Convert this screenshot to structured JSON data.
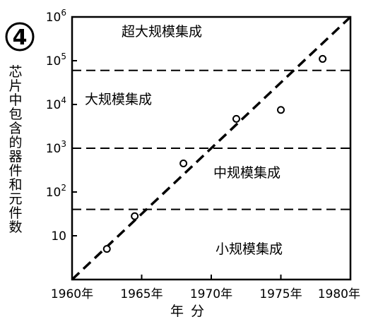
{
  "chart_data": {
    "type": "scatter",
    "badge": "4",
    "ylabel": "芯片中包含的器件和元件数",
    "xlabel": "年分",
    "x_ticks": [
      {
        "value": 1960,
        "label": "1960年"
      },
      {
        "value": 1965,
        "label": "1965年"
      },
      {
        "value": 1970,
        "label": "1970年"
      },
      {
        "value": 1975,
        "label": "1975年"
      },
      {
        "value": 1980,
        "label": "1980年"
      }
    ],
    "y_ticks": [
      {
        "exp": 1,
        "base": "10",
        "sup": ""
      },
      {
        "exp": 2,
        "base": "10",
        "sup": "2"
      },
      {
        "exp": 3,
        "base": "10",
        "sup": "3"
      },
      {
        "exp": 4,
        "base": "10",
        "sup": "4"
      },
      {
        "exp": 5,
        "base": "10",
        "sup": "5"
      },
      {
        "exp": 6,
        "base": "10",
        "sup": "6"
      }
    ],
    "xlim": [
      1960,
      1980
    ],
    "ylim": [
      1,
      1000000
    ],
    "yscale": "log",
    "points": [
      {
        "x": 1962.5,
        "y": 5
      },
      {
        "x": 1964.5,
        "y": 28
      },
      {
        "x": 1968.0,
        "y": 450
      },
      {
        "x": 1971.8,
        "y": 4700
      },
      {
        "x": 1975.0,
        "y": 7500
      },
      {
        "x": 1978.0,
        "y": 110000
      }
    ],
    "trend_line": {
      "x": [
        1960,
        1980
      ],
      "y": [
        1,
        1000000
      ]
    },
    "boundaries": [
      40,
      1000,
      60000
    ],
    "regions": [
      {
        "label": "超大规模集成"
      },
      {
        "label": "大规模集成"
      },
      {
        "label": "中规模集成"
      },
      {
        "label": "小规模集成"
      }
    ]
  }
}
